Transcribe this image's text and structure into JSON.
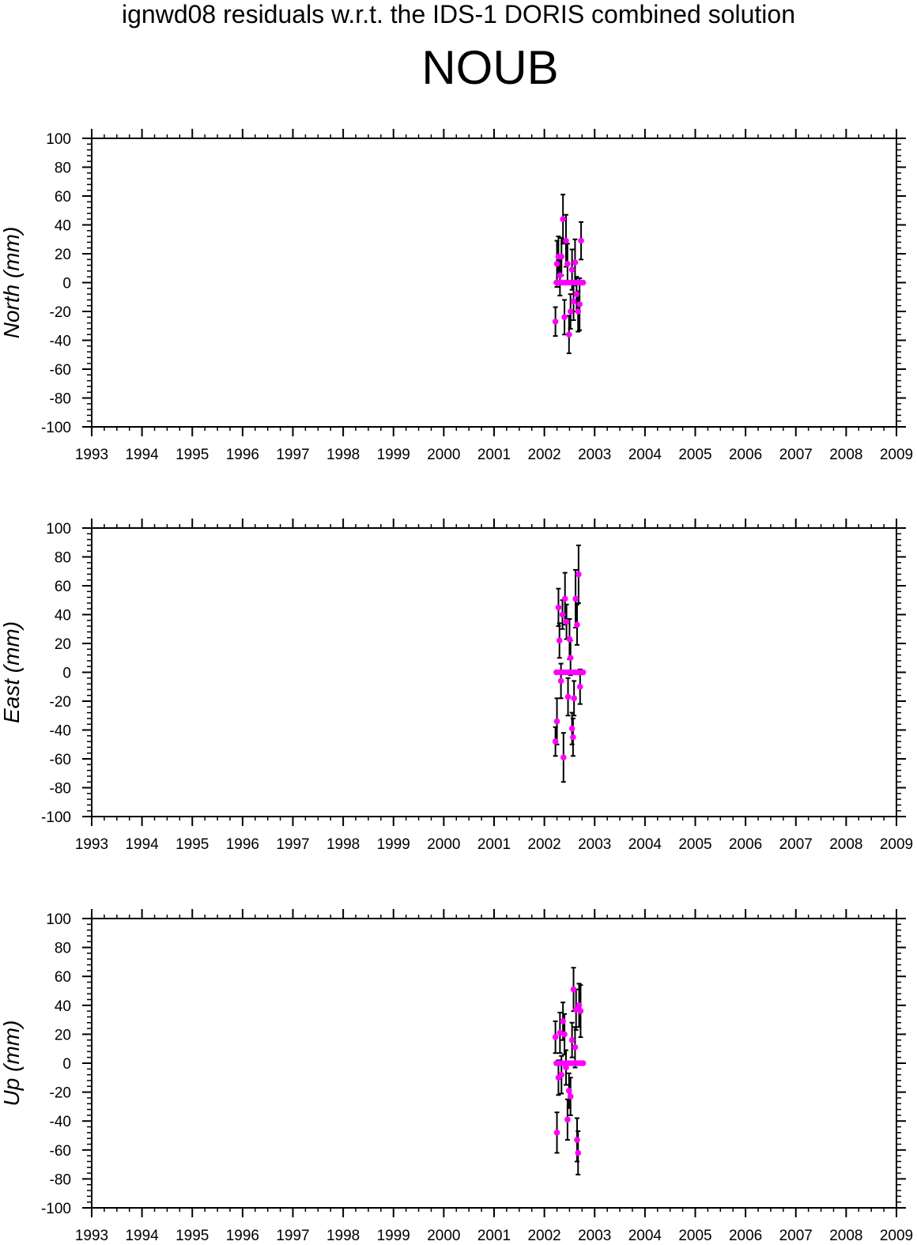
{
  "figure": {
    "supertitle": "ignwd08 residuals w.r.t. the IDS-1 DORIS combined solution",
    "station": "NOUB",
    "colors": {
      "point": "#ff00ff",
      "errorbar": "#000000",
      "axis": "#000000",
      "background": "#ffffff"
    }
  },
  "chart_data": [
    {
      "type": "scatter",
      "title": "",
      "ylabel": "North (mm)",
      "xlabel": "",
      "xlim": [
        1993,
        2009
      ],
      "ylim": [
        -100,
        100
      ],
      "x_ticks": [
        "1993",
        "1994",
        "1995",
        "1996",
        "1997",
        "1998",
        "1999",
        "2000",
        "2001",
        "2002",
        "2003",
        "2004",
        "2005",
        "2006",
        "2007",
        "2008",
        "2009"
      ],
      "y_ticks": [
        "100",
        "80",
        "60",
        "40",
        "20",
        "0",
        "-20",
        "-40",
        "-60",
        "-80",
        "-100"
      ],
      "error_bars": true,
      "points": [
        {
          "x": 2002.22,
          "y": -27,
          "err": 10
        },
        {
          "x": 2002.25,
          "y": 13,
          "err": 16
        },
        {
          "x": 2002.28,
          "y": 18,
          "err": 14
        },
        {
          "x": 2002.31,
          "y": 5,
          "err": 14
        },
        {
          "x": 2002.34,
          "y": 18,
          "err": 13
        },
        {
          "x": 2002.37,
          "y": 44,
          "err": 17
        },
        {
          "x": 2002.4,
          "y": -24,
          "err": 12
        },
        {
          "x": 2002.43,
          "y": 29,
          "err": 18
        },
        {
          "x": 2002.46,
          "y": 13,
          "err": 14
        },
        {
          "x": 2002.49,
          "y": -36,
          "err": 13
        },
        {
          "x": 2002.52,
          "y": -20,
          "err": 12
        },
        {
          "x": 2002.55,
          "y": 9,
          "err": 14
        },
        {
          "x": 2002.58,
          "y": -13,
          "err": 13
        },
        {
          "x": 2002.61,
          "y": 14,
          "err": 16
        },
        {
          "x": 2002.64,
          "y": -8,
          "err": 12
        },
        {
          "x": 2002.67,
          "y": -20,
          "err": 14
        },
        {
          "x": 2002.7,
          "y": -15,
          "err": 18
        },
        {
          "x": 2002.73,
          "y": 29,
          "err": 13
        },
        {
          "x": 2002.24,
          "y": 0,
          "err": 0
        },
        {
          "x": 2002.3,
          "y": 0,
          "err": 0
        },
        {
          "x": 2002.36,
          "y": 0,
          "err": 0
        },
        {
          "x": 2002.42,
          "y": 0,
          "err": 0
        },
        {
          "x": 2002.48,
          "y": 0,
          "err": 0
        },
        {
          "x": 2002.54,
          "y": 0,
          "err": 0
        },
        {
          "x": 2002.6,
          "y": 0,
          "err": 0
        },
        {
          "x": 2002.66,
          "y": 0,
          "err": 0
        },
        {
          "x": 2002.72,
          "y": 0,
          "err": 0
        },
        {
          "x": 2002.77,
          "y": 0,
          "err": 0
        }
      ]
    },
    {
      "type": "scatter",
      "title": "",
      "ylabel": "East (mm)",
      "xlabel": "",
      "xlim": [
        1993,
        2009
      ],
      "ylim": [
        -100,
        100
      ],
      "x_ticks": [
        "1993",
        "1994",
        "1995",
        "1996",
        "1997",
        "1998",
        "1999",
        "2000",
        "2001",
        "2002",
        "2003",
        "2004",
        "2005",
        "2006",
        "2007",
        "2008",
        "2009"
      ],
      "y_ticks": [
        "100",
        "80",
        "60",
        "40",
        "20",
        "0",
        "-20",
        "-40",
        "-60",
        "-80",
        "-100"
      ],
      "error_bars": true,
      "points": [
        {
          "x": 2002.22,
          "y": -48,
          "err": 10
        },
        {
          "x": 2002.25,
          "y": -34,
          "err": 16
        },
        {
          "x": 2002.28,
          "y": 45,
          "err": 13
        },
        {
          "x": 2002.3,
          "y": 22,
          "err": 12
        },
        {
          "x": 2002.33,
          "y": -6,
          "err": 12
        },
        {
          "x": 2002.36,
          "y": 40,
          "err": 10
        },
        {
          "x": 2002.38,
          "y": -59,
          "err": 17
        },
        {
          "x": 2002.41,
          "y": 51,
          "err": 18
        },
        {
          "x": 2002.44,
          "y": 35,
          "err": 12
        },
        {
          "x": 2002.47,
          "y": -17,
          "err": 13
        },
        {
          "x": 2002.5,
          "y": 23,
          "err": 14
        },
        {
          "x": 2002.52,
          "y": 10,
          "err": 12
        },
        {
          "x": 2002.55,
          "y": -39,
          "err": 11
        },
        {
          "x": 2002.57,
          "y": -45,
          "err": 13
        },
        {
          "x": 2002.59,
          "y": -18,
          "err": 12
        },
        {
          "x": 2002.62,
          "y": 51,
          "err": 20
        },
        {
          "x": 2002.65,
          "y": 33,
          "err": 14
        },
        {
          "x": 2002.68,
          "y": 68,
          "err": 20
        },
        {
          "x": 2002.71,
          "y": -10,
          "err": 12
        },
        {
          "x": 2002.24,
          "y": 0,
          "err": 0
        },
        {
          "x": 2002.31,
          "y": 0,
          "err": 0
        },
        {
          "x": 2002.37,
          "y": 0,
          "err": 0
        },
        {
          "x": 2002.43,
          "y": 0,
          "err": 0
        },
        {
          "x": 2002.49,
          "y": 0,
          "err": 0
        },
        {
          "x": 2002.55,
          "y": 0,
          "err": 0
        },
        {
          "x": 2002.61,
          "y": 0,
          "err": 0
        },
        {
          "x": 2002.67,
          "y": 0,
          "err": 0
        },
        {
          "x": 2002.73,
          "y": 0,
          "err": 0
        },
        {
          "x": 2002.77,
          "y": 0,
          "err": 0
        }
      ]
    },
    {
      "type": "scatter",
      "title": "",
      "ylabel": "Up (mm)",
      "xlabel": "",
      "xlim": [
        1993,
        2009
      ],
      "ylim": [
        -100,
        100
      ],
      "x_ticks": [
        "1993",
        "1994",
        "1995",
        "1996",
        "1997",
        "1998",
        "1999",
        "2000",
        "2001",
        "2002",
        "2003",
        "2004",
        "2005",
        "2006",
        "2007",
        "2008",
        "2009"
      ],
      "y_ticks": [
        "100",
        "80",
        "60",
        "40",
        "20",
        "0",
        "-20",
        "-40",
        "-60",
        "-80",
        "-100"
      ],
      "error_bars": true,
      "points": [
        {
          "x": 2002.22,
          "y": 18,
          "err": 11
        },
        {
          "x": 2002.25,
          "y": -48,
          "err": 14
        },
        {
          "x": 2002.28,
          "y": -10,
          "err": 12
        },
        {
          "x": 2002.31,
          "y": 21,
          "err": 14
        },
        {
          "x": 2002.34,
          "y": -8,
          "err": 13
        },
        {
          "x": 2002.37,
          "y": 29,
          "err": 13
        },
        {
          "x": 2002.4,
          "y": 20,
          "err": 14
        },
        {
          "x": 2002.43,
          "y": -3,
          "err": 12
        },
        {
          "x": 2002.46,
          "y": -39,
          "err": 14
        },
        {
          "x": 2002.49,
          "y": -19,
          "err": 12
        },
        {
          "x": 2002.52,
          "y": -23,
          "err": 13
        },
        {
          "x": 2002.55,
          "y": 16,
          "err": 12
        },
        {
          "x": 2002.58,
          "y": 51,
          "err": 15
        },
        {
          "x": 2002.61,
          "y": 11,
          "err": 14
        },
        {
          "x": 2002.63,
          "y": 37,
          "err": 14
        },
        {
          "x": 2002.65,
          "y": -53,
          "err": 15
        },
        {
          "x": 2002.67,
          "y": -62,
          "err": 15
        },
        {
          "x": 2002.69,
          "y": 40,
          "err": 15
        },
        {
          "x": 2002.72,
          "y": 36,
          "err": 18
        },
        {
          "x": 2002.24,
          "y": 0,
          "err": 0
        },
        {
          "x": 2002.3,
          "y": 0,
          "err": 0
        },
        {
          "x": 2002.36,
          "y": 0,
          "err": 0
        },
        {
          "x": 2002.42,
          "y": 0,
          "err": 0
        },
        {
          "x": 2002.48,
          "y": 0,
          "err": 0
        },
        {
          "x": 2002.54,
          "y": 0,
          "err": 0
        },
        {
          "x": 2002.6,
          "y": 0,
          "err": 0
        },
        {
          "x": 2002.66,
          "y": 0,
          "err": 0
        },
        {
          "x": 2002.72,
          "y": 0,
          "err": 0
        },
        {
          "x": 2002.77,
          "y": 0,
          "err": 0
        }
      ]
    }
  ]
}
